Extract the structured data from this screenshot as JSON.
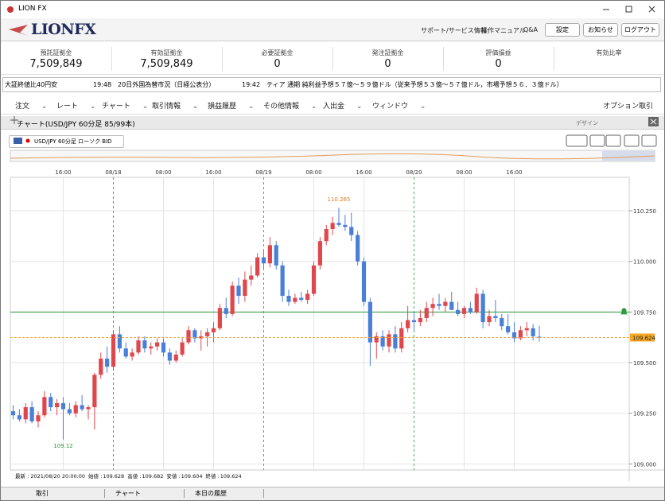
{
  "window": {
    "title": "LION FX"
  },
  "header": {
    "logo": "LIONFX",
    "links": [
      "サポート/サービス情報",
      "操作マニュアル",
      "Q&A"
    ],
    "buttons": [
      "設定",
      "お知らせ",
      "ログアウト"
    ]
  },
  "account": [
    {
      "label": "預託証拠金",
      "value": "7,509,849"
    },
    {
      "label": "有効証拠金",
      "value": "7,509,849"
    },
    {
      "label": "必要証拠金",
      "value": "0"
    },
    {
      "label": "発注証拠金",
      "value": "0"
    },
    {
      "label": "評価損益",
      "value": "0"
    },
    {
      "label": "有効比率"
    }
  ],
  "news": [
    "大証終値比40円安",
    "19:48　20日外国為替市況（日経公表分）",
    "19:42　ティア 通期 純利益予想５７億～５９億ドル（従来予想５３億～５７億ドル，市場予想５６．３億ドル）"
  ],
  "menu": {
    "items": [
      "注文",
      "レート",
      "チャート",
      "取引情報",
      "損益履歴",
      "その他情報",
      "入出金",
      "ウィンドウ"
    ],
    "right": "オプション取引"
  },
  "chart_panel": {
    "title": "チャート(USD/JPY 60分足 85/99本)",
    "design": "デザイン",
    "symbol": "USD/JPY 60分足 ローソク BID"
  },
  "bottom_tabs": [
    "取引",
    "チャート",
    "本日の履歴"
  ],
  "chart_data": {
    "type": "candlestick",
    "categories": [
      null,
      null,
      null,
      null,
      null,
      null,
      null,
      null,
      "16:00",
      null,
      null,
      null,
      null,
      null,
      null,
      null,
      "08/18",
      null,
      null,
      null,
      null,
      null,
      null,
      null,
      "08:00",
      null,
      null,
      null,
      null,
      null,
      null,
      null,
      "16:00",
      null,
      null,
      null,
      null,
      null,
      null,
      null,
      "08/19",
      null,
      null,
      null,
      null,
      null,
      null,
      null,
      "08:00",
      null,
      null,
      null,
      null,
      null,
      null,
      null,
      "16:00",
      null,
      null,
      null,
      null,
      null,
      null,
      null,
      "08/20",
      null,
      null,
      null,
      null,
      null,
      null,
      null,
      "08:00",
      null,
      null,
      null,
      null,
      null,
      null,
      null,
      "16:00",
      null,
      null,
      null,
      null
    ],
    "open": [
      109.26,
      109.24,
      109.22,
      109.28,
      109.21,
      109.24,
      109.33,
      109.28,
      109.3,
      109.27,
      109.25,
      109.29,
      109.27,
      109.28,
      109.44,
      109.52,
      109.48,
      109.64,
      109.57,
      109.53,
      109.55,
      109.61,
      109.57,
      109.58,
      109.6,
      109.55,
      109.51,
      109.54,
      109.6,
      109.66,
      109.62,
      109.63,
      109.65,
      109.67,
      109.77,
      109.74,
      109.88,
      109.83,
      109.91,
      109.93,
      110.02,
      109.99,
      110.08,
      109.98,
      109.83,
      109.8,
      109.82,
      109.81,
      109.84,
      109.98,
      110.1,
      110.16,
      110.19,
      110.18,
      110.17,
      110.13,
      110.0,
      109.8,
      109.6,
      109.63,
      109.58,
      109.64,
      109.57,
      109.67,
      109.71,
      109.7,
      109.72,
      109.77,
      109.79,
      109.78,
      109.8,
      109.76,
      109.74,
      109.77,
      109.75,
      109.84,
      109.7,
      109.73,
      109.72,
      109.68,
      109.65,
      109.62,
      109.66,
      109.67,
      109.628
    ],
    "high": [
      109.29,
      109.27,
      109.3,
      109.31,
      109.26,
      109.36,
      109.35,
      109.32,
      109.33,
      109.3,
      109.31,
      109.34,
      109.29,
      109.45,
      109.55,
      109.58,
      109.66,
      109.68,
      109.6,
      109.57,
      109.63,
      109.63,
      109.6,
      109.62,
      109.62,
      109.57,
      109.56,
      109.62,
      109.68,
      109.67,
      109.66,
      109.67,
      109.7,
      109.79,
      109.82,
      109.9,
      109.92,
      109.95,
      109.98,
      110.04,
      110.05,
      110.12,
      110.1,
      110.0,
      109.86,
      109.84,
      109.85,
      109.86,
      110.0,
      110.12,
      110.18,
      110.22,
      110.265,
      110.23,
      110.24,
      110.15,
      110.02,
      109.82,
      109.65,
      109.66,
      109.66,
      109.68,
      109.7,
      109.78,
      109.75,
      109.76,
      109.8,
      109.82,
      109.84,
      109.82,
      109.85,
      109.8,
      109.78,
      109.8,
      109.87,
      109.86,
      109.76,
      109.81,
      109.74,
      109.74,
      109.7,
      109.68,
      109.7,
      109.69,
      109.682
    ],
    "low": [
      109.22,
      109.21,
      109.2,
      109.2,
      109.18,
      109.23,
      109.26,
      109.24,
      109.12,
      109.24,
      109.23,
      109.26,
      109.22,
      109.17,
      109.42,
      109.45,
      109.46,
      109.55,
      109.52,
      109.51,
      109.54,
      109.55,
      109.54,
      109.56,
      109.53,
      109.49,
      109.5,
      109.53,
      109.59,
      109.6,
      109.56,
      109.58,
      109.6,
      109.66,
      109.72,
      109.73,
      109.79,
      109.8,
      109.88,
      109.92,
      109.96,
      109.97,
      109.96,
      109.8,
      109.78,
      109.79,
      109.8,
      109.79,
      109.83,
      109.96,
      110.08,
      110.13,
      110.17,
      110.15,
      110.1,
      109.98,
      109.78,
      109.484,
      109.52,
      109.56,
      109.55,
      109.55,
      109.55,
      109.65,
      109.66,
      109.68,
      109.7,
      109.73,
      109.76,
      109.75,
      109.77,
      109.73,
      109.72,
      109.74,
      109.74,
      109.67,
      109.68,
      109.7,
      109.66,
      109.64,
      109.6,
      109.61,
      109.63,
      109.61,
      109.604
    ],
    "close": [
      109.24,
      109.22,
      109.28,
      109.21,
      109.24,
      109.33,
      109.28,
      109.3,
      109.27,
      109.25,
      109.29,
      109.27,
      109.28,
      109.44,
      109.52,
      109.48,
      109.64,
      109.57,
      109.53,
      109.55,
      109.61,
      109.57,
      109.58,
      109.6,
      109.55,
      109.51,
      109.54,
      109.6,
      109.66,
      109.62,
      109.63,
      109.65,
      109.67,
      109.77,
      109.74,
      109.88,
      109.83,
      109.91,
      109.93,
      110.02,
      109.99,
      110.08,
      109.98,
      109.83,
      109.8,
      109.82,
      109.81,
      109.84,
      109.98,
      110.1,
      110.16,
      110.19,
      110.18,
      110.17,
      110.13,
      110.0,
      109.8,
      109.6,
      109.63,
      109.58,
      109.64,
      109.57,
      109.67,
      109.71,
      109.7,
      109.72,
      109.77,
      109.79,
      109.78,
      109.8,
      109.76,
      109.74,
      109.77,
      109.75,
      109.84,
      109.7,
      109.73,
      109.72,
      109.68,
      109.65,
      109.62,
      109.66,
      109.67,
      109.63,
      109.624
    ],
    "up_color": "#e0474c",
    "down_color": "#4a7fd8",
    "ylim": [
      108.97,
      110.415
    ],
    "yticks": [
      {
        "value": 109,
        "label": "109.000"
      },
      {
        "value": 109.25,
        "label": "109.250"
      },
      {
        "value": 109.5,
        "label": "109.500"
      },
      {
        "value": 109.75,
        "label": "109.750"
      },
      {
        "value": 110,
        "label": "110.000"
      },
      {
        "value": 110.25,
        "label": "110.250"
      }
    ],
    "grid": true,
    "alert_level": 109.75,
    "caption": {
      "latest": "最新 : 2021/08/20 20:00:00",
      "open_label": "始値 :",
      "high_label": "高値 :",
      "low_label": "安値 :",
      "close_label": "終値 :"
    }
  }
}
